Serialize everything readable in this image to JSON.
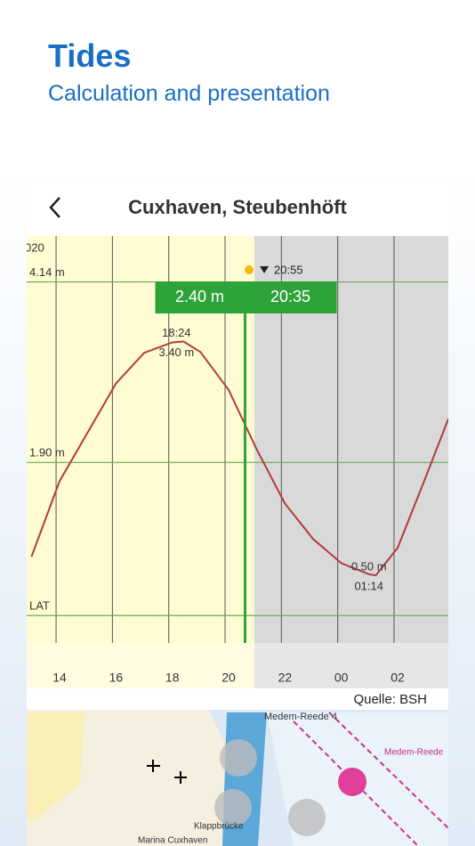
{
  "header": {
    "title": "Tides",
    "subtitle": "Calculation and presentation"
  },
  "app_bar": {
    "title": "Cuxhaven, Steubenhöft"
  },
  "tide_chart": {
    "type": "line",
    "year_fragment": "020",
    "x": [
      13,
      14,
      16,
      17,
      18,
      18.4,
      19,
      20,
      21,
      22,
      23,
      24,
      25,
      25.23,
      26,
      27,
      27.8
    ],
    "values": [
      0.73,
      1.67,
      2.88,
      3.26,
      3.39,
      3.4,
      3.27,
      2.8,
      2.06,
      1.39,
      0.95,
      0.65,
      0.51,
      0.5,
      0.84,
      1.72,
      2.44
    ],
    "color": "#b23b3b",
    "xlim": [
      12.83,
      27.8
    ],
    "ylim": [
      -0.34,
      4.71
    ],
    "xticks": [
      14,
      16,
      18,
      20,
      22,
      {
        "value": 24,
        "label": "00"
      },
      {
        "value": 26,
        "label": "02"
      }
    ],
    "reference_lines": [
      {
        "value": 4.14,
        "label": "4.14 m"
      },
      {
        "value": 1.9,
        "label": "1.90 m"
      },
      {
        "value": 0,
        "label": "LAT"
      }
    ],
    "sunset": "20:55",
    "high": {
      "time": "18:24",
      "label": "3.40 m"
    },
    "low": {
      "time": "01:14",
      "label": "0.50 m"
    },
    "cursor": {
      "value": "2.40 m",
      "time": "20:35"
    },
    "source": "Quelle: BSH"
  },
  "map": {
    "labels": [
      "Medem-Reede 4",
      "Klappbrücke",
      "Marina Cuxhaven",
      "Medem-Reede"
    ]
  }
}
